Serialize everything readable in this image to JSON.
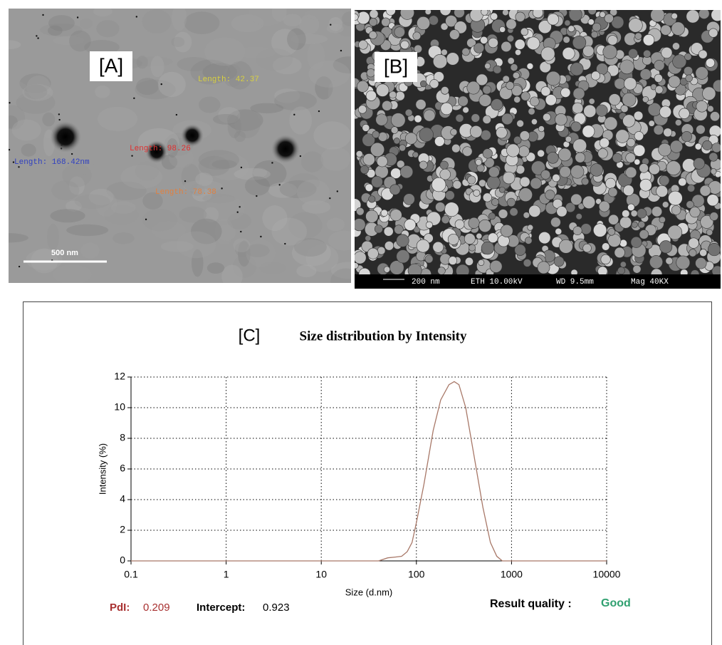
{
  "panel_a": {
    "label": "[A]",
    "scale_bar": "500 nm",
    "annotations": [
      "Length: 168.42nm",
      "Length: 42.37",
      "Length: 98.26",
      "Length: 78.38"
    ]
  },
  "panel_b": {
    "label": "[B]",
    "scale_bar": "200 nm",
    "voltage": "ETH 10.00kV",
    "working_distance": "WD 9.5mm",
    "magnification": "Mag 40KX"
  },
  "chart_data": {
    "type": "line",
    "panel_label": "[C]",
    "title": "Size distribution by Intensity",
    "x_label": "Size (d.nm)",
    "y_label": "Intensity (%)",
    "log_x": true,
    "grid": true,
    "color": "#a87868",
    "x": [
      0.1,
      1,
      10,
      40,
      50,
      60,
      70,
      80,
      90,
      100,
      120,
      150,
      180,
      220,
      250,
      280,
      330,
      400,
      500,
      600,
      700,
      800,
      1000,
      10000
    ],
    "values": [
      0,
      0,
      0,
      0,
      0.2,
      0.25,
      0.3,
      0.6,
      1.2,
      2.5,
      5,
      8.5,
      10.5,
      11.5,
      11.7,
      11.5,
      10,
      7,
      3.5,
      1.2,
      0.3,
      0,
      0,
      0
    ],
    "xlim": [
      0.1,
      10000
    ],
    "xticks": [
      0.1,
      1,
      10,
      100,
      1000,
      10000
    ],
    "ylim": [
      0,
      12
    ],
    "yticks": [
      0,
      2,
      4,
      6,
      8,
      10,
      12
    ],
    "pdi_label": "PdI:",
    "pdi": 0.209,
    "intercept_label": "Intercept:",
    "intercept": 0.923,
    "quality_label": "Result quality :",
    "quality": "Good"
  }
}
